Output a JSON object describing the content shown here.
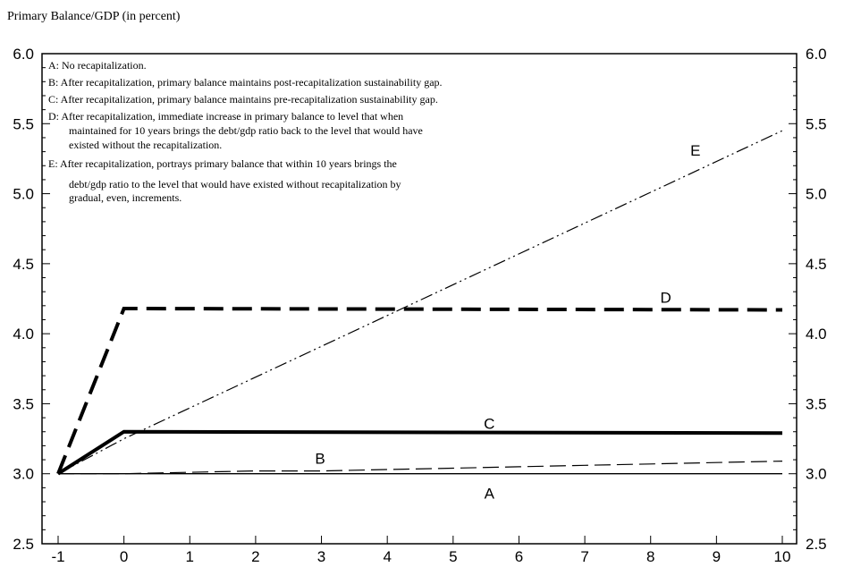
{
  "chart_data": {
    "type": "line",
    "title": "",
    "ylabel": "Primary Balance/GDP (in percent)",
    "xlabel": "",
    "x": [
      -1,
      0,
      1,
      2,
      3,
      4,
      5,
      6,
      7,
      8,
      9,
      10
    ],
    "xticks": [
      "-1",
      "0",
      "1",
      "2",
      "3",
      "4",
      "5",
      "6",
      "7",
      "8",
      "9",
      "10"
    ],
    "xlim": [
      -1,
      10
    ],
    "ylim": [
      2.5,
      6.0
    ],
    "yticks": [
      "2.5",
      "3.0",
      "3.5",
      "4.0",
      "4.5",
      "5.0",
      "5.5",
      "6.0"
    ],
    "grid": false,
    "secondary_y_axis": true,
    "series": [
      {
        "name": "A",
        "style": "solid-thin",
        "color": "#000000",
        "x": [
          -1,
          0,
          10
        ],
        "y": [
          3.0,
          3.0,
          3.0
        ]
      },
      {
        "name": "B",
        "style": "dashed-thin",
        "color": "#000000",
        "x": [
          -1,
          0,
          1,
          2,
          3,
          4,
          5,
          6,
          7,
          8,
          9,
          10
        ],
        "y": [
          3.0,
          3.0,
          3.01,
          3.02,
          3.02,
          3.03,
          3.04,
          3.05,
          3.06,
          3.07,
          3.08,
          3.09
        ]
      },
      {
        "name": "C",
        "style": "solid-thick",
        "color": "#000000",
        "x": [
          -1,
          0,
          10
        ],
        "y": [
          3.0,
          3.3,
          3.29
        ]
      },
      {
        "name": "D",
        "style": "dashed-thick",
        "color": "#000000",
        "x": [
          -1,
          0,
          10
        ],
        "y": [
          3.0,
          4.18,
          4.17
        ]
      },
      {
        "name": "E",
        "style": "dash-dot-dot",
        "color": "#000000",
        "x": [
          -1,
          0,
          10
        ],
        "y": [
          3.0,
          3.25,
          5.45
        ]
      }
    ],
    "labels": [
      {
        "text": "A",
        "x": 5.55,
        "y": 2.86
      },
      {
        "text": "B",
        "x": 2.98,
        "y": 3.11
      },
      {
        "text": "C",
        "x": 5.55,
        "y": 3.36
      },
      {
        "text": "D",
        "x": 8.23,
        "y": 4.26
      },
      {
        "text": "E",
        "x": 8.68,
        "y": 5.31
      }
    ],
    "legend": {
      "position": "top-left",
      "lines": [
        "A: No recapitalization.",
        "B: After recapitalization, primary balance maintains post-recapitalization sustainability gap.",
        "C: After recapitalization, primary balance maintains pre-recapitalization sustainability gap.",
        "D: After recapitalization, immediate increase in primary balance to level that when",
        "maintained for 10 years brings the debt/gdp ratio back to the level that would have",
        "existed without the recapitalization.",
        "E: After recapitalization, portrays primary balance that within 10 years brings the",
        "debt/gdp ratio to the level that would have existed without recapitalization by",
        "gradual, even, increments."
      ]
    }
  }
}
